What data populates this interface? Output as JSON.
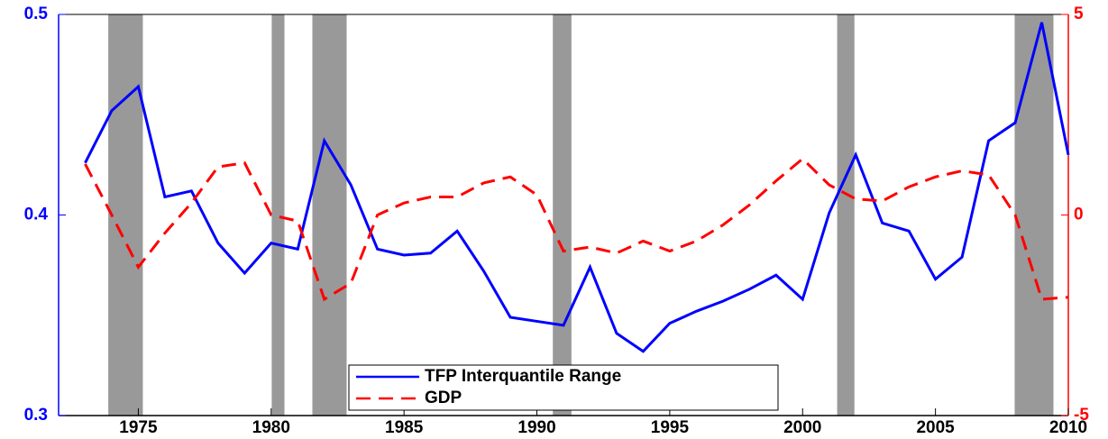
{
  "chart_data": {
    "type": "line",
    "x": [
      1973,
      1974,
      1975,
      1976,
      1977,
      1978,
      1979,
      1980,
      1981,
      1982,
      1983,
      1984,
      1985,
      1986,
      1987,
      1988,
      1989,
      1990,
      1991,
      1992,
      1993,
      1994,
      1995,
      1996,
      1997,
      1998,
      1999,
      2000,
      2001,
      2002,
      2003,
      2004,
      2005,
      2006,
      2007,
      2008,
      2009,
      2010
    ],
    "series": [
      {
        "name": "TFP Interquantile Range",
        "color": "#0000ff",
        "linestyle": "solid",
        "values": [
          0.426,
          0.452,
          0.464,
          0.409,
          0.412,
          0.386,
          0.371,
          0.386,
          0.383,
          0.437,
          0.415,
          0.383,
          0.38,
          0.381,
          0.392,
          0.372,
          0.349,
          0.347,
          0.345,
          0.374,
          0.341,
          0.332,
          0.346,
          0.352,
          0.357,
          0.363,
          0.37,
          0.358,
          0.401,
          0.43,
          0.396,
          0.392,
          0.368,
          0.379,
          0.437,
          0.446,
          0.496,
          0.43
        ]
      },
      {
        "name": "GDP",
        "color": "#ff0000",
        "linestyle": "dashed",
        "axis": "y2",
        "values": [
          1.27,
          0,
          -1.3,
          -0.45,
          0.3,
          1.2,
          1.3,
          0,
          -0.15,
          -2.1,
          -1.7,
          0,
          0.3,
          0.45,
          0.45,
          0.8,
          0.95,
          0.5,
          -0.9,
          -0.8,
          -0.95,
          -0.65,
          -0.9,
          -0.65,
          -0.25,
          0.25,
          0.85,
          1.4,
          0.75,
          0.4,
          0.35,
          0.7,
          0.95,
          1.1,
          1.0,
          0,
          -2.1,
          -2.05
        ]
      }
    ],
    "recessions": [
      [
        1973.87,
        1975.17
      ],
      [
        1980.02,
        1980.5
      ],
      [
        1981.55,
        1982.84
      ],
      [
        1990.6,
        1991.3
      ],
      [
        2001.3,
        2001.95
      ],
      [
        2007.98,
        2009.44
      ]
    ],
    "recession_color": "#999999",
    "xlim": [
      1972,
      2010
    ],
    "xticks": [
      1975,
      1980,
      1985,
      1990,
      1995,
      2000,
      2005,
      2010
    ],
    "ylim": [
      0.3,
      0.5
    ],
    "yticks": [
      0.3,
      0.4,
      0.5
    ],
    "y2lim": [
      -5,
      5
    ],
    "y2ticks": [
      -5,
      0,
      5
    ],
    "legend": "lower center"
  }
}
